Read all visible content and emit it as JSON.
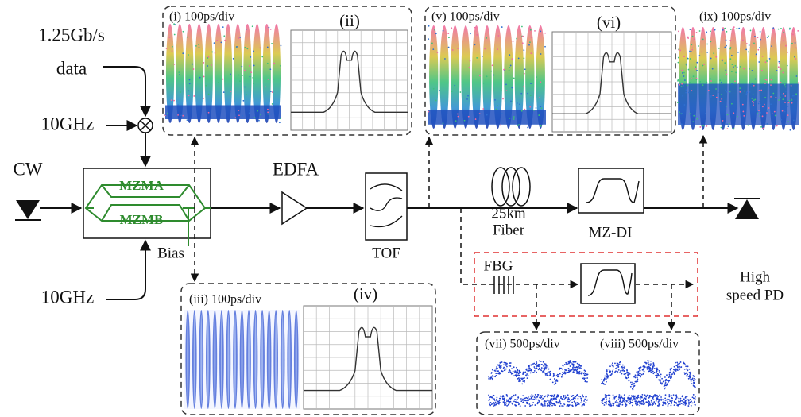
{
  "inputs": {
    "data_rate": [
      "1.25Gb/s",
      "data"
    ],
    "clock_top": "10GHz",
    "clock_bottom": "10GHz",
    "source": "CW"
  },
  "modulator": {
    "arm_a": "MZMA",
    "arm_b": "MZMB",
    "bias": "Bias"
  },
  "components": {
    "amplifier": "EDFA",
    "filter": "TOF",
    "fiber": [
      "25km",
      "Fiber"
    ],
    "interferometer": "MZ-DI",
    "grating": "FBG",
    "detector": [
      "High",
      "speed PD"
    ]
  },
  "panels": [
    {
      "label": "(i) 100ps/div"
    },
    {
      "label": "(ii)"
    },
    {
      "label": "(iii) 100ps/div"
    },
    {
      "label": "(iv)"
    },
    {
      "label": "(v) 100ps/div"
    },
    {
      "label": "(vi)"
    },
    {
      "label": "(vii) 500ps/div"
    },
    {
      "label": "(viii) 500ps/div"
    },
    {
      "label": "(ix) 100ps/div"
    }
  ]
}
